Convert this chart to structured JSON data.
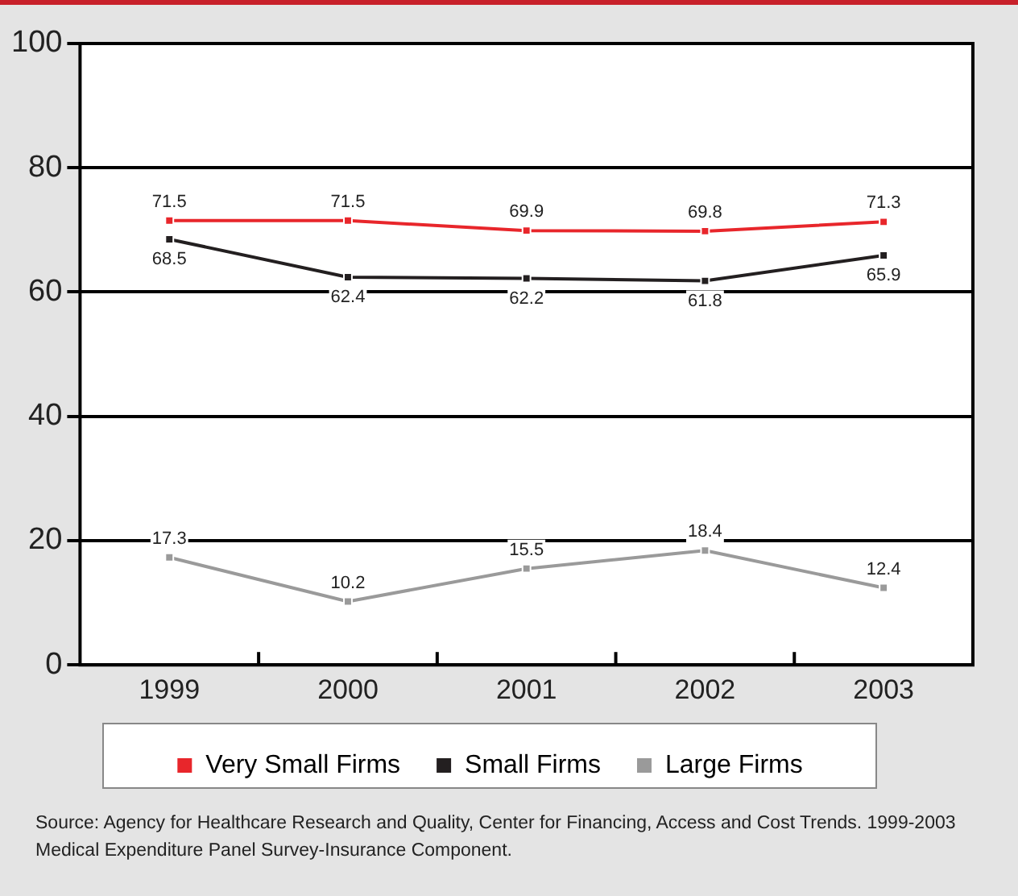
{
  "chart_data": {
    "type": "line",
    "categories": [
      "1999",
      "2000",
      "2001",
      "2002",
      "2003"
    ],
    "series": [
      {
        "name": "Very Small Firms",
        "color": "#e8262b",
        "values": [
          71.5,
          71.5,
          69.9,
          69.8,
          71.3
        ]
      },
      {
        "name": "Small Firms",
        "color": "#231f20",
        "values": [
          68.5,
          62.4,
          62.2,
          61.8,
          65.9
        ]
      },
      {
        "name": "Large Firms",
        "color": "#9a9a9a",
        "values": [
          17.3,
          10.2,
          15.5,
          18.4,
          12.4
        ]
      }
    ],
    "ylim": [
      0,
      100
    ],
    "yticks": [
      0,
      20,
      40,
      60,
      80,
      100
    ],
    "grid": "y",
    "legend": "bottom",
    "marker": "square",
    "line_style": "solid",
    "data_labels": true,
    "annotations": [
      "Source: Agency for Healthcare Research and Quality, Center for Financing, Access and Cost Trends. 1999-2003 Medical Expenditure Panel Survey-Insurance Component."
    ]
  }
}
